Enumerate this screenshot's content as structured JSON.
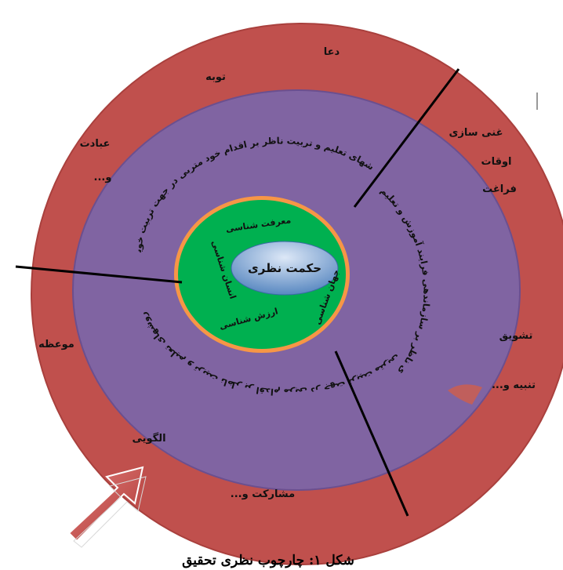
{
  "diagram": {
    "caption": "شکل ۱: چارچوب نظری تحقیق",
    "center": {
      "label": "حکمت نظری"
    },
    "inner_ring": {
      "labels": {
        "top": "معرفت شناسی",
        "left": "انسان شناسی",
        "right": "جهان شناسی",
        "bottom": "ارزش شناسی"
      }
    },
    "middle_ring": {
      "arcs": {
        "top": "روشهای تعلیم و تربیت ناظر بر اقدام خود متربی در جهت تربیت خویش",
        "right": "روشهای ناظر بر سازماندهی فرایند آموزش و تعلیم و تربیت",
        "bottom": "روشهای تعلیم و تربیت ناظر بر اقدام مربی در جهت تربیت متربی"
      }
    },
    "outer_ring": {
      "labels": {
        "doa": "دعا",
        "tobe": "توبه",
        "ebadat": "عبادت",
        "ebadat_etc": "و...",
        "ghani": "غنی سازی",
        "oghat": "اوقات",
        "faraghat": "فراغت",
        "tashvigh": "تشویق",
        "tanbih": "تنبیه و...",
        "moeze": "موعظه",
        "olgooyi": "الگویی",
        "mosharekat": "مشارکت و..."
      }
    },
    "colors": {
      "outer": "#c0504d",
      "middle": "#8064a2",
      "orange_ring": "#f79646",
      "inner": "#00b050",
      "center_top": "#bcd3ee",
      "center_bottom": "#4f81bd",
      "arrow": "#c0504d"
    },
    "icons": [
      "arrow-right-icon"
    ]
  }
}
